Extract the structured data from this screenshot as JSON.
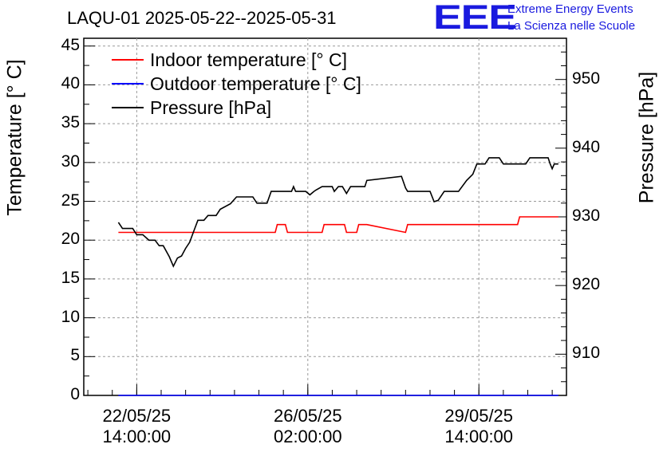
{
  "title": "LAQU-01 2025-05-22--2025-05-31",
  "logo": {
    "mark": "EEE",
    "line1": "Extreme Energy Events",
    "line2": "La Scienza nelle Scuole",
    "color": "#1a1adf"
  },
  "chart_data": {
    "type": "line",
    "title": "LAQU-01 2025-05-22--2025-05-31",
    "ylabel_left": "Temperature [° C]",
    "ylabel_right": "Pressure [hPa]",
    "xlim": [
      "2025-05-21 12:00:00",
      "2025-05-31 09:00:00"
    ],
    "ylim_left": [
      0,
      46
    ],
    "ylim_right": [
      904,
      956
    ],
    "yticks_left": [
      "0",
      "5",
      "10",
      "15",
      "20",
      "25",
      "30",
      "35",
      "40",
      "45"
    ],
    "yticks_right": [
      "910",
      "920",
      "930",
      "940",
      "950"
    ],
    "xticks": [
      {
        "x": "2025-05-22 14:00:00",
        "line1": "22/05/25",
        "line2": "14:00:00"
      },
      {
        "x": "2025-05-26 02:00:00",
        "line1": "26/05/25",
        "line2": "02:00:00"
      },
      {
        "x": "2025-05-29 14:00:00",
        "line1": "29/05/25",
        "line2": "14:00:00"
      }
    ],
    "grid": true,
    "legend_position": "top-left",
    "series": [
      {
        "name": "Indoor temperature [° C]",
        "color": "#ff0000",
        "axis": "left",
        "points": [
          [
            "2025-05-22 05:00:00",
            21
          ],
          [
            "2025-05-25 10:00:00",
            21
          ],
          [
            "2025-05-25 11:00:00",
            22
          ],
          [
            "2025-05-25 15:00:00",
            22
          ],
          [
            "2025-05-25 16:00:00",
            21
          ],
          [
            "2025-05-26 09:00:00",
            21
          ],
          [
            "2025-05-26 10:00:00",
            22
          ],
          [
            "2025-05-26 20:00:00",
            22
          ],
          [
            "2025-05-26 21:00:00",
            21
          ],
          [
            "2025-05-27 02:00:00",
            21
          ],
          [
            "2025-05-27 03:00:00",
            22
          ],
          [
            "2025-05-27 07:00:00",
            22
          ],
          [
            "2025-05-28 02:00:00",
            21
          ],
          [
            "2025-05-28 03:00:00",
            22
          ],
          [
            "2025-05-30 09:00:00",
            22
          ],
          [
            "2025-05-30 10:00:00",
            23
          ],
          [
            "2025-05-31 05:00:00",
            23
          ]
        ]
      },
      {
        "name": "Outdoor temperature [° C]",
        "color": "#0000ff",
        "axis": "left",
        "points": [
          [
            "2025-05-22 05:00:00",
            0
          ],
          [
            "2025-05-31 05:00:00",
            0
          ]
        ]
      },
      {
        "name": "Pressure [hPa]",
        "color": "#000000",
        "axis": "right",
        "points": [
          [
            "2025-05-22 05:00:00",
            929.2
          ],
          [
            "2025-05-22 07:00:00",
            928.3
          ],
          [
            "2025-05-22 12:00:00",
            928.3
          ],
          [
            "2025-05-22 14:00:00",
            927.4
          ],
          [
            "2025-05-22 17:00:00",
            927.4
          ],
          [
            "2025-05-22 20:00:00",
            926.6
          ],
          [
            "2025-05-22 23:00:00",
            926.6
          ],
          [
            "2025-05-23 01:00:00",
            925.8
          ],
          [
            "2025-05-23 03:00:00",
            925.8
          ],
          [
            "2025-05-23 06:00:00",
            924.2
          ],
          [
            "2025-05-23 08:00:00",
            922.8
          ],
          [
            "2025-05-23 10:00:00",
            924.0
          ],
          [
            "2025-05-23 12:00:00",
            924.3
          ],
          [
            "2025-05-23 14:00:00",
            925.4
          ],
          [
            "2025-05-23 16:00:00",
            926.3
          ],
          [
            "2025-05-23 18:00:00",
            927.9
          ],
          [
            "2025-05-23 20:00:00",
            929.5
          ],
          [
            "2025-05-23 23:00:00",
            929.5
          ],
          [
            "2025-05-24 01:00:00",
            930.2
          ],
          [
            "2025-05-24 05:00:00",
            930.2
          ],
          [
            "2025-05-24 07:00:00",
            931.1
          ],
          [
            "2025-05-24 12:00:00",
            931.9
          ],
          [
            "2025-05-24 15:00:00",
            932.9
          ],
          [
            "2025-05-24 23:00:00",
            932.9
          ],
          [
            "2025-05-25 01:00:00",
            932.0
          ],
          [
            "2025-05-25 06:00:00",
            932.0
          ],
          [
            "2025-05-25 08:00:00",
            933.7
          ],
          [
            "2025-05-25 18:00:00",
            933.7
          ],
          [
            "2025-05-25 19:00:00",
            934.4
          ],
          [
            "2025-05-25 20:00:00",
            933.7
          ],
          [
            "2025-05-26 01:00:00",
            933.7
          ],
          [
            "2025-05-26 03:00:00",
            933.2
          ],
          [
            "2025-05-26 05:00:00",
            933.7
          ],
          [
            "2025-05-26 06:00:00",
            933.9
          ],
          [
            "2025-05-26 09:00:00",
            934.4
          ],
          [
            "2025-05-26 14:00:00",
            934.4
          ],
          [
            "2025-05-26 15:00:00",
            933.7
          ],
          [
            "2025-05-26 17:00:00",
            934.4
          ],
          [
            "2025-05-26 19:00:00",
            934.4
          ],
          [
            "2025-05-26 21:00:00",
            933.4
          ],
          [
            "2025-05-26 23:00:00",
            934.4
          ],
          [
            "2025-05-27 06:00:00",
            934.4
          ],
          [
            "2025-05-27 07:00:00",
            935.3
          ],
          [
            "2025-05-28 00:00:00",
            935.9
          ],
          [
            "2025-05-28 02:00:00",
            934.2
          ],
          [
            "2025-05-28 03:00:00",
            933.7
          ],
          [
            "2025-05-28 14:00:00",
            933.7
          ],
          [
            "2025-05-28 16:00:00",
            932.2
          ],
          [
            "2025-05-28 18:00:00",
            932.4
          ],
          [
            "2025-05-28 21:00:00",
            933.7
          ],
          [
            "2025-05-29 04:00:00",
            933.7
          ],
          [
            "2025-05-29 08:00:00",
            935.3
          ],
          [
            "2025-05-29 11:00:00",
            936.2
          ],
          [
            "2025-05-29 13:00:00",
            937.7
          ],
          [
            "2025-05-29 17:00:00",
            937.7
          ],
          [
            "2025-05-29 19:00:00",
            938.6
          ],
          [
            "2025-05-30 00:00:00",
            938.6
          ],
          [
            "2025-05-30 02:00:00",
            937.7
          ],
          [
            "2025-05-30 13:00:00",
            937.7
          ],
          [
            "2025-05-30 15:00:00",
            938.6
          ],
          [
            "2025-05-31 00:00:00",
            938.6
          ],
          [
            "2025-05-31 01:00:00",
            937.7
          ],
          [
            "2025-05-31 02:00:00",
            937.0
          ],
          [
            "2025-05-31 03:00:00",
            937.7
          ],
          [
            "2025-05-31 05:00:00",
            937.7
          ]
        ]
      }
    ]
  }
}
